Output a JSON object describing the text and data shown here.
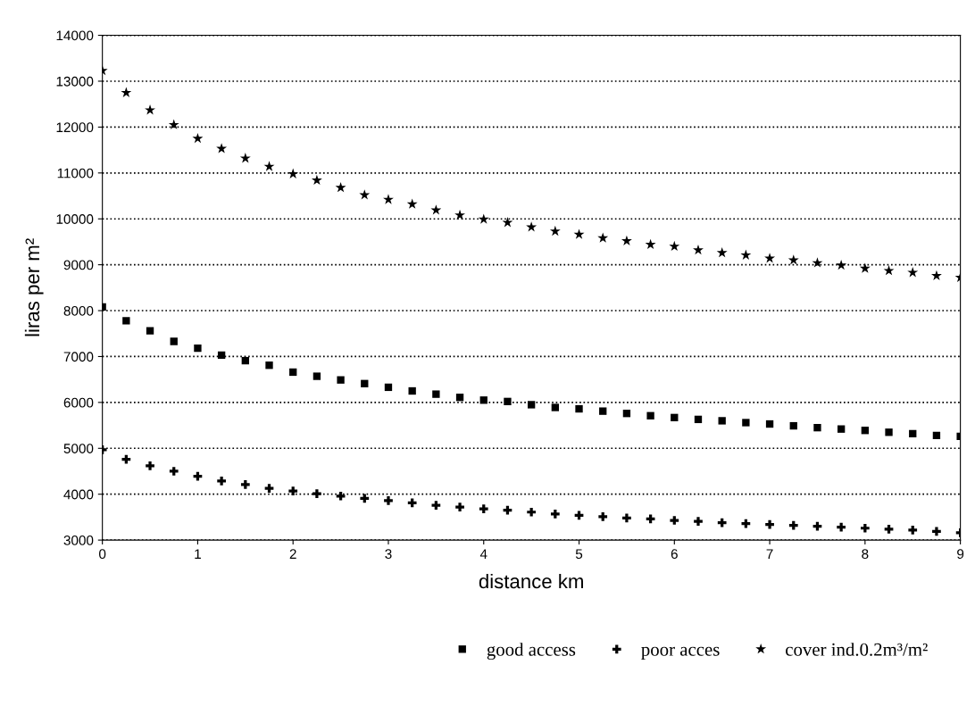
{
  "chart_data": {
    "type": "scatter",
    "xlabel": "distance km",
    "ylabel": "liras per m²",
    "x": [
      0,
      0.25,
      0.5,
      0.75,
      1,
      1.25,
      1.5,
      1.75,
      2,
      2.25,
      2.5,
      2.75,
      3,
      3.25,
      3.5,
      3.75,
      4,
      4.25,
      4.5,
      4.75,
      5,
      5.25,
      5.5,
      5.75,
      6,
      6.25,
      6.5,
      6.75,
      7,
      7.25,
      7.5,
      7.75,
      8,
      8.25,
      8.5,
      8.75,
      9
    ],
    "series": [
      {
        "name": "good access",
        "color": "#000000",
        "marker": "square",
        "values": [
          8080,
          7780,
          7560,
          7330,
          7180,
          7030,
          6910,
          6810,
          6660,
          6570,
          6490,
          6410,
          6330,
          6250,
          6180,
          6110,
          6050,
          6020,
          5950,
          5890,
          5860,
          5810,
          5760,
          5710,
          5670,
          5630,
          5600,
          5560,
          5530,
          5490,
          5450,
          5420,
          5390,
          5350,
          5320,
          5280,
          5260
        ]
      },
      {
        "name": "poor acces",
        "color": "#000000",
        "marker": "cross",
        "values": [
          4970,
          4760,
          4620,
          4500,
          4390,
          4290,
          4210,
          4130,
          4070,
          4010,
          3960,
          3910,
          3860,
          3810,
          3760,
          3720,
          3680,
          3650,
          3610,
          3570,
          3540,
          3510,
          3480,
          3460,
          3430,
          3410,
          3380,
          3360,
          3340,
          3320,
          3300,
          3280,
          3260,
          3240,
          3220,
          3190,
          3160
        ]
      },
      {
        "name": "cover ind.0.2m³/m²",
        "color": "#000000",
        "marker": "star",
        "values": [
          13230,
          12750,
          12370,
          12050,
          11750,
          11530,
          11320,
          11140,
          10980,
          10840,
          10680,
          10520,
          10420,
          10320,
          10190,
          10080,
          9990,
          9920,
          9820,
          9730,
          9660,
          9580,
          9520,
          9440,
          9400,
          9320,
          9260,
          9210,
          9140,
          9100,
          9040,
          8990,
          8920,
          8870,
          8830,
          8760,
          8720
        ]
      }
    ],
    "xlim": [
      0,
      9
    ],
    "xticks": [
      0,
      1,
      2,
      3,
      4,
      5,
      6,
      7,
      8,
      9
    ],
    "ylim": [
      3000,
      14000
    ],
    "yticks": [
      3000,
      4000,
      5000,
      6000,
      7000,
      8000,
      9000,
      10000,
      11000,
      12000,
      13000,
      14000
    ],
    "grid": "y",
    "legend": "bottom"
  }
}
